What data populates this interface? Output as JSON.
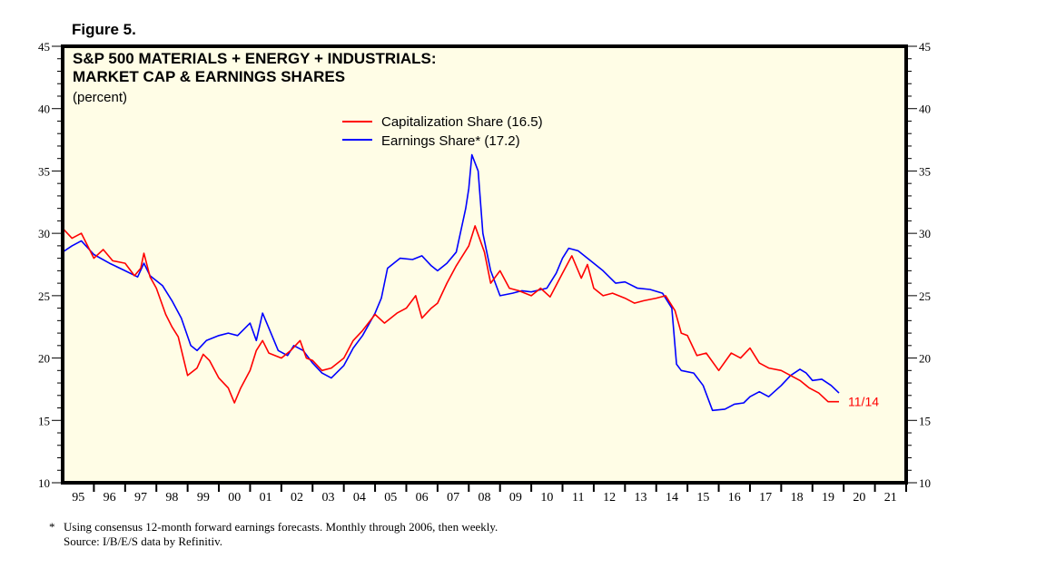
{
  "figure_label": "Figure 5.",
  "chart_data": {
    "type": "line",
    "title": "S&P 500 MATERIALS + ENERGY + INDUSTRIALS:",
    "subtitle": "MARKET CAP & EARNINGS SHARES",
    "units": "(percent)",
    "xlabel": "",
    "ylabel": "percent",
    "xlim": [
      1995,
      2022
    ],
    "ylim": [
      10,
      45
    ],
    "y_ticks": [
      10,
      15,
      20,
      25,
      30,
      35,
      40,
      45
    ],
    "x_tick_labels": [
      "95",
      "96",
      "97",
      "98",
      "99",
      "00",
      "01",
      "02",
      "03",
      "04",
      "05",
      "06",
      "07",
      "08",
      "09",
      "10",
      "11",
      "12",
      "13",
      "14",
      "15",
      "16",
      "17",
      "18",
      "19",
      "20",
      "21"
    ],
    "legend_position": "top-center",
    "end_label": "11/14",
    "colors": {
      "background": "#fffde6",
      "capitalization": "#ff0000",
      "earnings": "#0000ff",
      "end_label": "#ff0000"
    },
    "series": [
      {
        "name": "Capitalization Share (16.5)",
        "key": "capitalization",
        "x": [
          1995.0,
          1995.3,
          1995.6,
          1996.0,
          1996.3,
          1996.6,
          1997.0,
          1997.3,
          1997.5,
          1997.6,
          1997.8,
          1998.0,
          1998.3,
          1998.5,
          1998.7,
          1999.0,
          1999.3,
          1999.5,
          1999.7,
          2000.0,
          2000.3,
          2000.5,
          2000.7,
          2001.0,
          2001.2,
          2001.4,
          2001.6,
          2002.0,
          2002.3,
          2002.6,
          2002.8,
          2003.0,
          2003.3,
          2003.6,
          2004.0,
          2004.3,
          2004.6,
          2005.0,
          2005.3,
          2005.7,
          2006.0,
          2006.3,
          2006.5,
          2006.8,
          2007.0,
          2007.3,
          2007.6,
          2008.0,
          2008.2,
          2008.5,
          2008.7,
          2009.0,
          2009.3,
          2009.6,
          2010.0,
          2010.3,
          2010.6,
          2011.0,
          2011.3,
          2011.6,
          2011.8,
          2012.0,
          2012.3,
          2012.6,
          2013.0,
          2013.3,
          2013.6,
          2014.0,
          2014.3,
          2014.6,
          2014.8,
          2015.0,
          2015.3,
          2015.6,
          2016.0,
          2016.4,
          2016.7,
          2017.0,
          2017.3,
          2017.6,
          2018.0,
          2018.3,
          2018.6,
          2018.9,
          2019.2,
          2019.5,
          2019.85
        ],
        "values": [
          30.4,
          29.6,
          30.0,
          28.0,
          28.7,
          27.8,
          27.6,
          26.6,
          27.2,
          28.4,
          26.5,
          25.6,
          23.5,
          22.5,
          21.7,
          18.6,
          19.2,
          20.3,
          19.8,
          18.4,
          17.6,
          16.4,
          17.6,
          19.0,
          20.6,
          21.4,
          20.4,
          20.0,
          20.6,
          21.4,
          20.0,
          19.8,
          19.0,
          19.2,
          20.0,
          21.4,
          22.2,
          23.5,
          22.8,
          23.6,
          24.0,
          25.0,
          23.2,
          24.0,
          24.4,
          26.0,
          27.4,
          29.0,
          30.6,
          28.5,
          26.0,
          27.0,
          25.6,
          25.4,
          25.0,
          25.6,
          24.9,
          26.8,
          28.2,
          26.4,
          27.5,
          25.6,
          25.0,
          25.2,
          24.8,
          24.4,
          24.6,
          24.8,
          25.0,
          23.8,
          22.0,
          21.8,
          20.2,
          20.4,
          19.0,
          20.4,
          20.0,
          20.8,
          19.6,
          19.2,
          19.0,
          18.6,
          18.2,
          17.6,
          17.2,
          16.5,
          16.5
        ]
      },
      {
        "name": "Earnings Share* (17.2)",
        "key": "earnings",
        "x": [
          1995.0,
          1995.3,
          1995.6,
          1996.0,
          1996.5,
          1997.0,
          1997.4,
          1997.6,
          1997.8,
          1998.2,
          1998.5,
          1998.8,
          1999.1,
          1999.3,
          1999.6,
          2000.0,
          2000.3,
          2000.6,
          2001.0,
          2001.2,
          2001.4,
          2001.6,
          2001.9,
          2002.2,
          2002.4,
          2002.7,
          2003.0,
          2003.3,
          2003.6,
          2004.0,
          2004.3,
          2004.6,
          2005.0,
          2005.2,
          2005.4,
          2005.8,
          2006.2,
          2006.5,
          2006.8,
          2007.0,
          2007.3,
          2007.6,
          2007.9,
          2008.0,
          2008.1,
          2008.3,
          2008.45,
          2008.7,
          2009.0,
          2009.4,
          2009.7,
          2010.0,
          2010.5,
          2010.8,
          2011.0,
          2011.2,
          2011.5,
          2011.9,
          2012.3,
          2012.7,
          2013.0,
          2013.4,
          2013.8,
          2014.2,
          2014.5,
          2014.65,
          2014.8,
          2015.2,
          2015.5,
          2015.8,
          2016.2,
          2016.5,
          2016.8,
          2017.0,
          2017.3,
          2017.6,
          2018.0,
          2018.3,
          2018.6,
          2018.8,
          2019.0,
          2019.3,
          2019.6,
          2019.85
        ],
        "values": [
          28.5,
          29.0,
          29.4,
          28.3,
          27.6,
          27.0,
          26.5,
          27.6,
          26.6,
          25.8,
          24.6,
          23.2,
          21.0,
          20.6,
          21.4,
          21.8,
          22.0,
          21.8,
          22.8,
          21.4,
          23.6,
          22.4,
          20.6,
          20.2,
          21.0,
          20.6,
          19.6,
          18.8,
          18.4,
          19.4,
          20.8,
          21.8,
          23.6,
          24.8,
          27.2,
          28.0,
          27.9,
          28.2,
          27.4,
          27.0,
          27.6,
          28.5,
          32.0,
          33.6,
          36.3,
          35.0,
          30.0,
          27.0,
          25.0,
          25.2,
          25.4,
          25.3,
          25.6,
          26.8,
          28.0,
          28.8,
          28.6,
          27.8,
          27.0,
          26.0,
          26.1,
          25.6,
          25.5,
          25.2,
          24.0,
          19.5,
          19.0,
          18.8,
          17.8,
          15.8,
          15.9,
          16.3,
          16.4,
          16.9,
          17.3,
          16.9,
          17.8,
          18.6,
          19.1,
          18.8,
          18.2,
          18.3,
          17.8,
          17.2
        ]
      }
    ]
  },
  "footnote": {
    "marker": "*",
    "line1": "Using consensus 12-month forward earnings forecasts. Monthly through 2006, then weekly.",
    "line2": "Source: I/B/E/S data by Refinitiv."
  }
}
